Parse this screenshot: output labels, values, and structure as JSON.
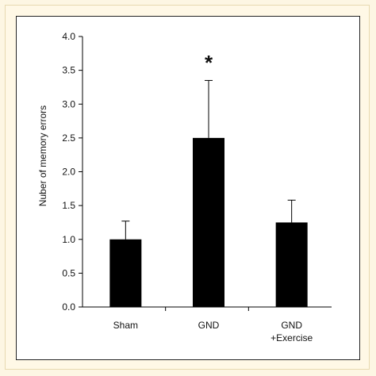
{
  "chart_data": {
    "type": "bar",
    "categories": [
      "Sham",
      "GND",
      "GND\n+Exercise"
    ],
    "category_lines": [
      [
        "Sham"
      ],
      [
        "GND"
      ],
      [
        "GND",
        "+Exercise"
      ]
    ],
    "values": [
      1.0,
      2.5,
      1.25
    ],
    "errors": [
      0.27,
      0.85,
      0.33
    ],
    "annotations": [
      {
        "category": "GND",
        "text": "*"
      }
    ],
    "title": "",
    "xlabel": "",
    "ylabel": "Nuber of memory errors",
    "ylim": [
      0,
      4.0
    ],
    "yticks": [
      0.0,
      0.5,
      1.0,
      1.5,
      2.0,
      2.5,
      3.0,
      3.5,
      4.0
    ],
    "ytick_labels": [
      "0.0",
      "0.5",
      "1.0",
      "1.5",
      "2.0",
      "2.5",
      "3.0",
      "3.5",
      "4.0"
    ],
    "bar_color": "#000000",
    "grid": false
  }
}
